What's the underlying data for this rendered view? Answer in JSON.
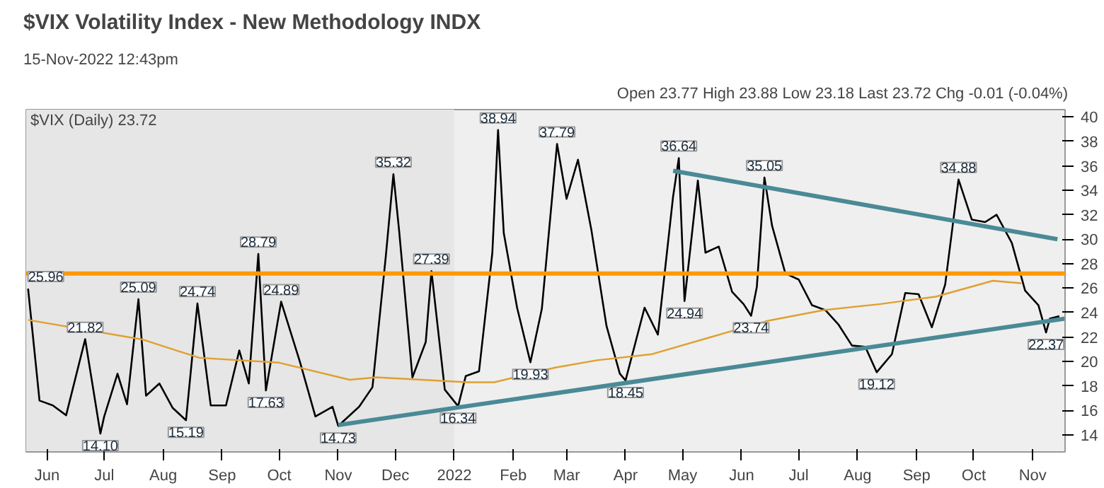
{
  "chart_data": {
    "type": "line",
    "title": "$VIX Volatility Index - New Methodology INDX",
    "subtitle": "15-Nov-2022 12:43pm",
    "xlim": [
      "2021-05-21",
      "2022-11-18"
    ],
    "ylim": [
      12.6,
      40.6
    ],
    "xticks": [
      {
        "value": "2021-06-01",
        "label": "Jun"
      },
      {
        "value": "2021-07-01",
        "label": "Jul"
      },
      {
        "value": "2021-08-01",
        "label": "Aug"
      },
      {
        "value": "2021-09-01",
        "label": "Sep"
      },
      {
        "value": "2021-10-01",
        "label": "Oct"
      },
      {
        "value": "2021-11-01",
        "label": "Nov"
      },
      {
        "value": "2021-12-01",
        "label": "Dec"
      },
      {
        "value": "2022-01-01",
        "label": "2022"
      },
      {
        "value": "2022-02-01",
        "label": "Feb"
      },
      {
        "value": "2022-03-01",
        "label": "Mar"
      },
      {
        "value": "2022-04-01",
        "label": "Apr"
      },
      {
        "value": "2022-05-01",
        "label": "May"
      },
      {
        "value": "2022-06-01",
        "label": "Jun"
      },
      {
        "value": "2022-07-01",
        "label": "Jul"
      },
      {
        "value": "2022-08-01",
        "label": "Aug"
      },
      {
        "value": "2022-09-01",
        "label": "Sep"
      },
      {
        "value": "2022-10-01",
        "label": "Oct"
      },
      {
        "value": "2022-11-01",
        "label": "Nov"
      }
    ],
    "yticks": [
      14,
      16,
      18,
      20,
      22,
      24,
      26,
      28,
      30,
      32,
      34,
      36,
      38,
      40
    ],
    "series": [
      {
        "color": "#000000",
        "x": [
          "2021-05-22",
          "2021-05-28",
          "2021-06-04",
          "2021-06-11",
          "2021-06-21",
          "2021-06-29",
          "2021-07-01",
          "2021-07-08",
          "2021-07-13",
          "2021-07-19",
          "2021-07-23",
          "2021-07-30",
          "2021-08-06",
          "2021-08-13",
          "2021-08-19",
          "2021-08-26",
          "2021-09-03",
          "2021-09-10",
          "2021-09-15",
          "2021-09-20",
          "2021-09-24",
          "2021-09-30",
          "2021-10-02",
          "2021-10-12",
          "2021-10-20",
          "2021-10-29",
          "2021-11-01",
          "2021-11-12",
          "2021-11-19",
          "2021-11-26",
          "2021-11-30",
          "2021-12-03",
          "2021-12-10",
          "2021-12-17",
          "2021-12-20",
          "2021-12-27",
          "2022-01-03",
          "2022-01-07",
          "2022-01-14",
          "2022-01-21",
          "2022-01-24",
          "2022-01-27",
          "2022-02-03",
          "2022-02-10",
          "2022-02-16",
          "2022-02-24",
          "2022-03-01",
          "2022-03-07",
          "2022-03-14",
          "2022-03-22",
          "2022-03-29",
          "2022-04-01",
          "2022-04-11",
          "2022-04-18",
          "2022-04-26",
          "2022-04-29",
          "2022-05-02",
          "2022-05-09",
          "2022-05-13",
          "2022-05-20",
          "2022-05-27",
          "2022-06-02",
          "2022-06-06",
          "2022-06-09",
          "2022-06-13",
          "2022-06-17",
          "2022-06-24",
          "2022-07-01",
          "2022-07-08",
          "2022-07-15",
          "2022-07-22",
          "2022-07-29",
          "2022-08-05",
          "2022-08-11",
          "2022-08-19",
          "2022-08-26",
          "2022-09-02",
          "2022-09-09",
          "2022-09-16",
          "2022-09-23",
          "2022-09-30",
          "2022-10-07",
          "2022-10-13",
          "2022-10-21",
          "2022-10-28",
          "2022-11-04",
          "2022-11-08",
          "2022-11-10",
          "2022-11-15"
        ],
        "values": [
          25.96,
          16.8,
          16.4,
          15.6,
          21.82,
          14.1,
          15.5,
          19.0,
          16.5,
          25.09,
          17.2,
          18.2,
          16.2,
          15.19,
          24.74,
          16.4,
          16.4,
          20.9,
          18.2,
          28.79,
          17.63,
          23.1,
          24.89,
          19.9,
          15.5,
          16.3,
          14.73,
          16.3,
          17.9,
          28.6,
          35.32,
          30.7,
          18.7,
          21.6,
          27.39,
          17.7,
          16.34,
          18.8,
          19.2,
          28.9,
          38.94,
          30.5,
          24.4,
          19.93,
          24.3,
          37.79,
          33.3,
          36.5,
          30.8,
          22.9,
          19.0,
          18.45,
          24.4,
          22.2,
          33.5,
          36.64,
          24.94,
          34.8,
          28.9,
          29.4,
          25.7,
          24.7,
          23.74,
          26.1,
          35.05,
          31.1,
          27.2,
          26.7,
          24.6,
          24.2,
          23.0,
          21.3,
          21.2,
          19.12,
          20.6,
          25.6,
          25.5,
          22.8,
          26.3,
          34.88,
          31.6,
          31.4,
          32.0,
          29.7,
          25.8,
          24.6,
          22.37,
          23.5,
          23.7
        ]
      },
      {
        "color": "#e0a030",
        "x": [
          "2021-05-22",
          "2021-07-21",
          "2021-08-20",
          "2021-10-01",
          "2021-11-07",
          "2021-11-21",
          "2021-12-15",
          "2022-01-08",
          "2022-01-22",
          "2022-02-23",
          "2022-03-17",
          "2022-04-15",
          "2022-05-16",
          "2022-06-14",
          "2022-07-14",
          "2022-08-13",
          "2022-09-11",
          "2022-10-11",
          "2022-10-26"
        ],
        "values": [
          23.4,
          21.8,
          20.3,
          19.9,
          18.5,
          18.7,
          18.5,
          18.3,
          18.3,
          19.5,
          20.1,
          20.6,
          22.0,
          23.3,
          24.2,
          24.7,
          25.3,
          26.6,
          26.4
        ]
      },
      {
        "color": "#4a8a96",
        "x": [
          "2021-11-01",
          "2022-11-18"
        ],
        "values": [
          14.8,
          23.5
        ]
      },
      {
        "color": "#4a8a96",
        "x": [
          "2022-04-26",
          "2022-11-14"
        ],
        "values": [
          35.6,
          30.0
        ]
      }
    ],
    "ref_lines": [
      {
        "axis": "y",
        "value": 27.2,
        "color": "#ff9900"
      }
    ],
    "bands": [
      {
        "axis": "x",
        "from": "2021-05-21",
        "to": "2022-01-01",
        "color": "#e6e6e6"
      }
    ],
    "annotations": [
      "Open 23.77 High 23.88 Low 23.18 Last 23.72 Chg -0.01 (-0.04%)",
      "$VIX (Daily) 23.72",
      {
        "text": "25.96",
        "x": "2021-05-22",
        "y": 25.96
      },
      {
        "text": "21.82",
        "x": "2021-06-21",
        "y": 21.82
      },
      {
        "text": "14.10",
        "x": "2021-06-29",
        "y": 14.1
      },
      {
        "text": "25.09",
        "x": "2021-07-19",
        "y": 25.09
      },
      {
        "text": "15.19",
        "x": "2021-08-13",
        "y": 15.19
      },
      {
        "text": "24.74",
        "x": "2021-08-19",
        "y": 24.74
      },
      {
        "text": "28.79",
        "x": "2021-09-20",
        "y": 28.79
      },
      {
        "text": "17.63",
        "x": "2021-09-24",
        "y": 17.63
      },
      {
        "text": "24.89",
        "x": "2021-10-02",
        "y": 24.89
      },
      {
        "text": "14.73",
        "x": "2021-11-01",
        "y": 14.73
      },
      {
        "text": "35.32",
        "x": "2021-11-30",
        "y": 35.32
      },
      {
        "text": "27.39",
        "x": "2021-12-20",
        "y": 27.39
      },
      {
        "text": "16.34",
        "x": "2022-01-03",
        "y": 16.34
      },
      {
        "text": "38.94",
        "x": "2022-01-24",
        "y": 38.94
      },
      {
        "text": "19.93",
        "x": "2022-02-10",
        "y": 19.93
      },
      {
        "text": "37.79",
        "x": "2022-02-24",
        "y": 37.79
      },
      {
        "text": "18.45",
        "x": "2022-04-01",
        "y": 18.45
      },
      {
        "text": "36.64",
        "x": "2022-04-29",
        "y": 36.64
      },
      {
        "text": "24.94",
        "x": "2022-05-02",
        "y": 24.94
      },
      {
        "text": "23.74",
        "x": "2022-06-06",
        "y": 23.74
      },
      {
        "text": "35.05",
        "x": "2022-06-13",
        "y": 35.05
      },
      {
        "text": "19.12",
        "x": "2022-08-11",
        "y": 19.12
      },
      {
        "text": "34.88",
        "x": "2022-09-23",
        "y": 34.88
      },
      {
        "text": "22.37",
        "x": "2022-11-08",
        "y": 22.37
      }
    ]
  }
}
